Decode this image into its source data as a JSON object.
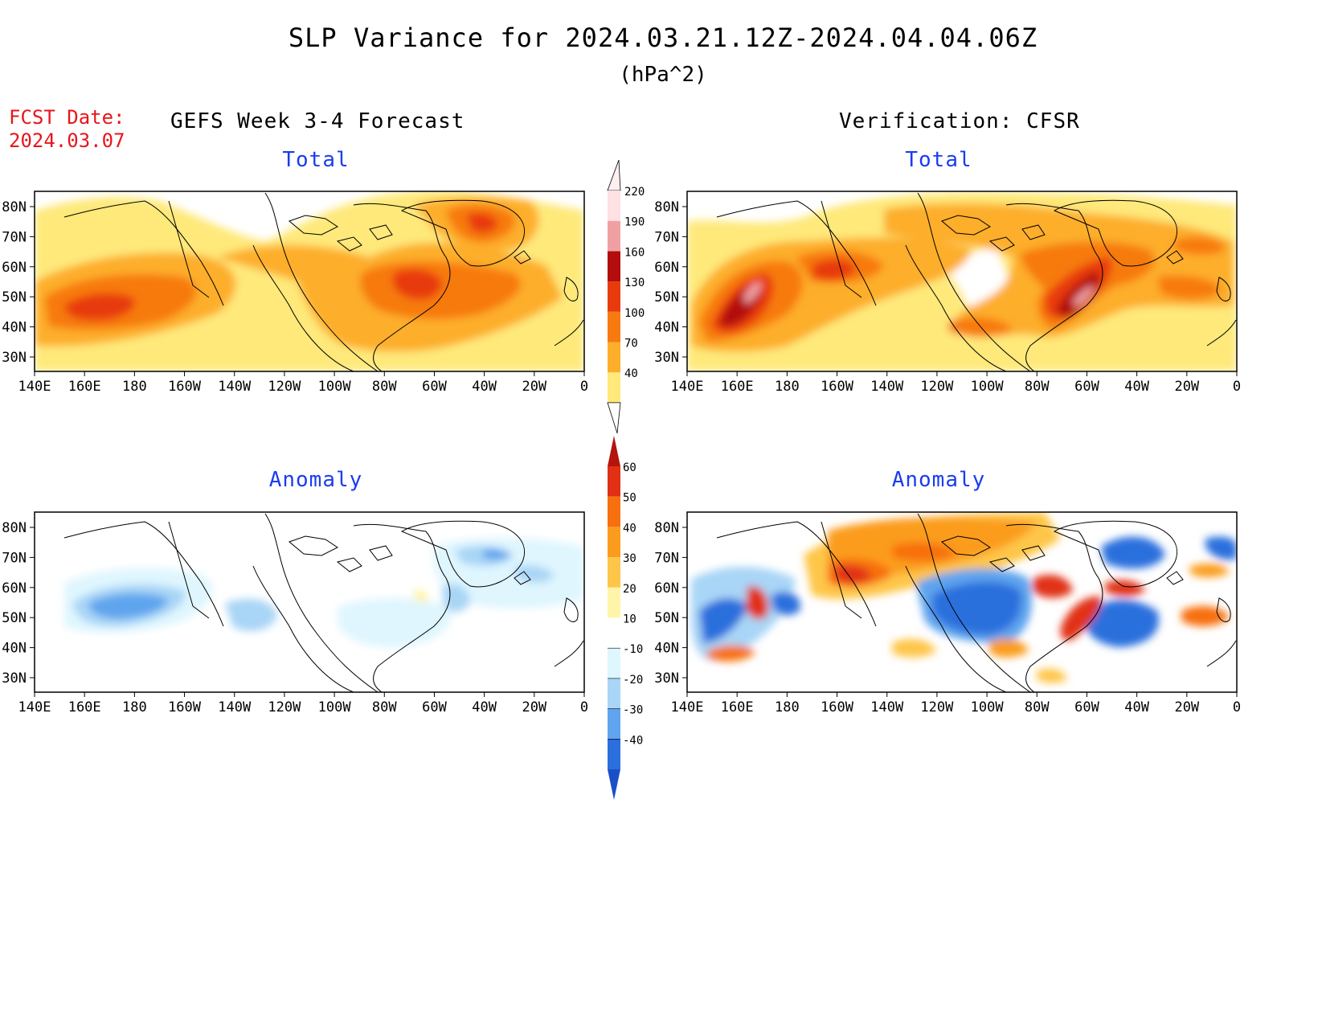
{
  "title": "SLP Variance for 2024.03.21.12Z-2024.04.04.06Z",
  "units": "(hPa^2)",
  "fcst": {
    "label": "FCST Date:",
    "date": "2024.03.07"
  },
  "left_header": "GEFS Week 3-4 Forecast",
  "right_header": "Verification: CFSR",
  "panels": {
    "fcst_total": "Total",
    "verif_total": "Total",
    "fcst_anomaly": "Anomaly",
    "verif_anomaly": "Anomaly"
  },
  "axes": {
    "lon_labels": [
      "140E",
      "160E",
      "180",
      "160W",
      "140W",
      "120W",
      "100W",
      "80W",
      "60W",
      "40W",
      "20W",
      "0"
    ],
    "lat_labels": [
      "80N",
      "70N",
      "60N",
      "50N",
      "40N",
      "30N"
    ]
  },
  "colorbars": {
    "total": {
      "labels": [
        "40",
        "70",
        "100",
        "130",
        "160",
        "190",
        "220"
      ],
      "colors": [
        "#fee97a",
        "#fdae2a",
        "#f77a10",
        "#e83b0c",
        "#b30d0d",
        "#f0a0a2",
        "#fde1e3"
      ]
    },
    "anomaly": {
      "labels": [
        "60",
        "50",
        "40",
        "30",
        "20",
        "10",
        "-10",
        "-20",
        "-30",
        "-40"
      ],
      "colors": [
        "#b3150e",
        "#e13014",
        "#f7700f",
        "#fb9c1f",
        "#fec648",
        "#fef5a8",
        "#ffffff",
        "#dff6fe",
        "#a9d5f6",
        "#5fa4ee",
        "#2b6fdd",
        "#1a4fc8"
      ]
    }
  }
}
